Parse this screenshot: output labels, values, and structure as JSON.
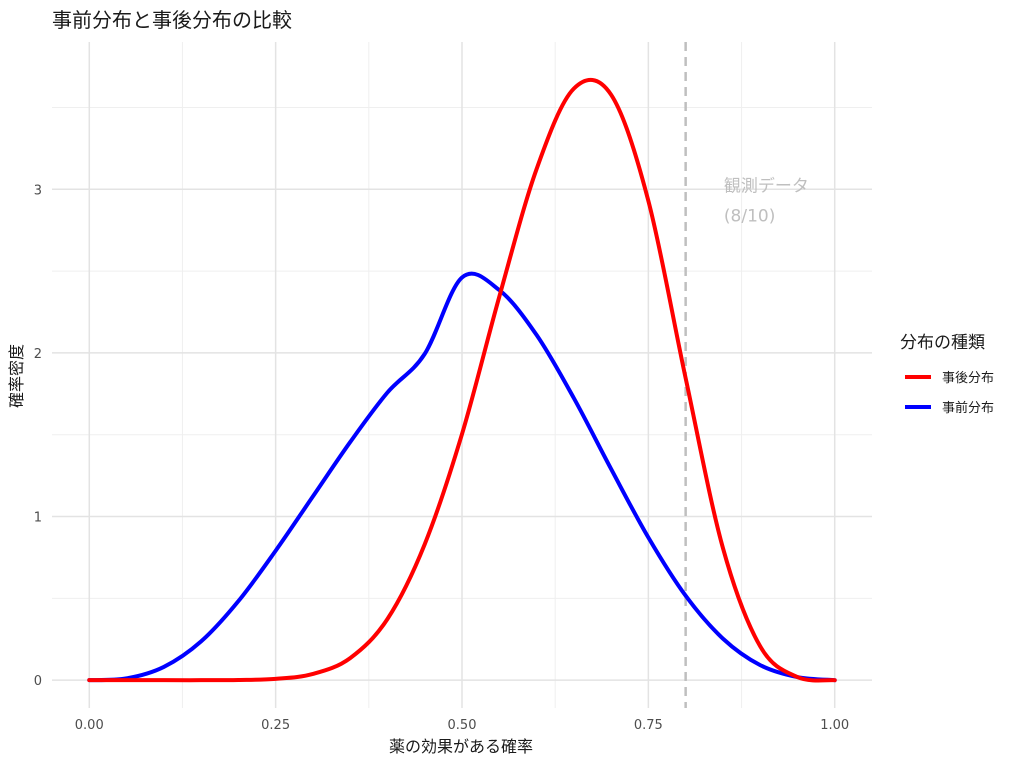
{
  "chart_data": {
    "type": "line",
    "title": "事前分布と事後分布の比較",
    "xlabel": "薬の効果がある確率",
    "ylabel": "確率密度",
    "xlim": [
      -0.05,
      1.05
    ],
    "ylim": [
      -0.17,
      3.9
    ],
    "x_ticks": [
      0,
      0.25,
      0.5,
      0.75,
      1.0
    ],
    "x_tick_labels": [
      "0.00",
      "0.25",
      "0.50",
      "0.75",
      "1.00"
    ],
    "y_ticks": [
      0,
      1,
      2,
      3
    ],
    "y_tick_labels": [
      "0",
      "1",
      "2",
      "3"
    ],
    "grid": true,
    "legend": {
      "title": "分布の種類",
      "position": "right",
      "entries": [
        {
          "name": "事後分布",
          "color": "#ff0000"
        },
        {
          "name": "事前分布",
          "color": "#0000ff"
        }
      ]
    },
    "series": [
      {
        "name": "事後分布",
        "color": "#ff0000",
        "x": [
          0.0,
          0.05,
          0.1,
          0.15,
          0.2,
          0.25,
          0.3,
          0.35,
          0.4,
          0.45,
          0.5,
          0.55,
          0.6,
          0.65,
          0.7,
          0.75,
          0.8,
          0.85,
          0.9,
          0.95,
          1.0
        ],
        "y": [
          0.0,
          0.0,
          0.0,
          0.0,
          0.001,
          0.008,
          0.038,
          0.135,
          0.374,
          0.831,
          1.504,
          2.343,
          3.123,
          3.615,
          3.578,
          2.929,
          1.846,
          0.808,
          0.207,
          0.019,
          0.0
        ]
      },
      {
        "name": "事前分布",
        "color": "#0000ff",
        "x": [
          0.0,
          0.05,
          0.1,
          0.15,
          0.2,
          0.25,
          0.3,
          0.35,
          0.4,
          0.45,
          0.5,
          0.55,
          0.6,
          0.65,
          0.7,
          0.75,
          0.8,
          0.85,
          0.9,
          0.95,
          1.0
        ],
        "y": [
          0.0,
          0.011,
          0.081,
          0.237,
          0.483,
          0.791,
          1.123,
          1.455,
          1.758,
          1.994,
          2.461,
          2.384,
          2.11,
          1.724,
          1.291,
          0.872,
          0.516,
          0.254,
          0.092,
          0.019,
          0.0
        ]
      }
    ],
    "annotations": [
      {
        "type": "vline",
        "x": 0.8,
        "style": "dashed",
        "color": "#bfbfbf"
      },
      {
        "type": "text",
        "x": 0.85,
        "y": 3.0,
        "lines": [
          "観測データ",
          "(8/10)"
        ],
        "color": "#bfbfbf"
      }
    ]
  }
}
